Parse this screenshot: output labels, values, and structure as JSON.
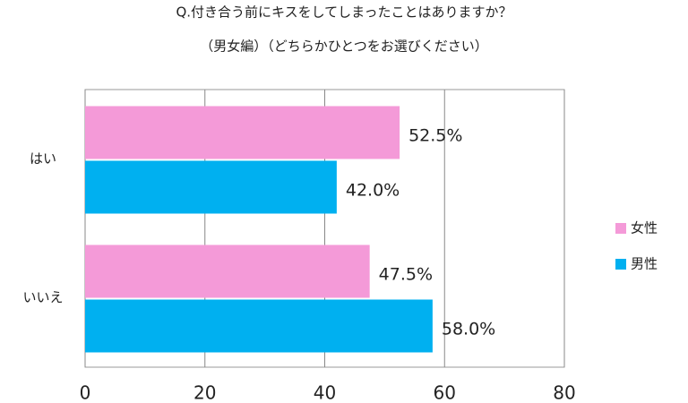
{
  "chart_data": {
    "type": "hbar",
    "title": "Q.付き合う前にキスをしてしまったことはありますか？",
    "subtitle": "（男女編）（どちらかひとつをお選びください）",
    "categories": [
      "はい",
      "いいえ"
    ],
    "series": [
      {
        "name": "女性",
        "color": "#f49ad8",
        "values": [
          52.5,
          47.5
        ],
        "value_labels": [
          "52.5%",
          "47.5%"
        ]
      },
      {
        "name": "男性",
        "color": "#00b0f0",
        "values": [
          42,
          58
        ],
        "value_labels": [
          "42.0%",
          "58.0%"
        ]
      }
    ],
    "xlim": [
      0,
      80
    ],
    "xticks": [
      0,
      20,
      40,
      60,
      80
    ],
    "grid": true,
    "legend": "right"
  }
}
